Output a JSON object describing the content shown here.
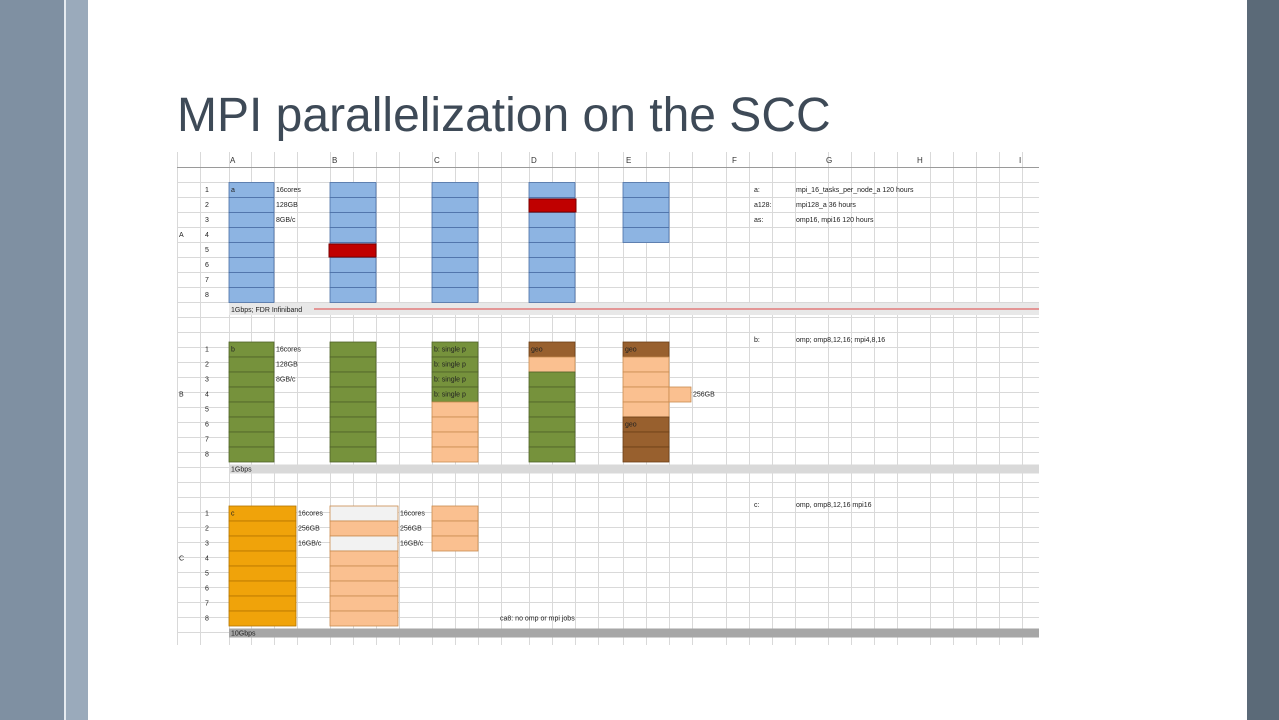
{
  "slide": {
    "title": "MPI parallelization on the SCC"
  },
  "spreadsheet": {
    "column_headers": [
      "A",
      "B",
      "C",
      "D",
      "E",
      "F",
      "G",
      "H",
      "I"
    ],
    "group_labels": [
      "A",
      "B",
      "C"
    ],
    "row_numbers": [
      "1",
      "2",
      "3",
      "4",
      "5",
      "6",
      "7",
      "8"
    ],
    "colors": {
      "blue": "#8db4e2",
      "red": "#c00000",
      "green": "#76923c",
      "brown": "#98602e",
      "peach": "#fac090",
      "orange": "#f0a30a",
      "light": "#f2f2f2",
      "grey_band": "#d9d9d9",
      "dark_band": "#a6a6a6",
      "network_red": "#e06666"
    },
    "group_a": {
      "node_label": "a",
      "specs": [
        "16cores",
        "128GB",
        "8GB/c"
      ],
      "network": "1Gbps; FDR Infiniband",
      "notes": [
        {
          "key": "a:",
          "value": "mpi_16_tasks_per_node_a   120 hours"
        },
        {
          "key": "a128:",
          "value": "mpi128_a   36 hours"
        },
        {
          "key": "as:",
          "value": "omp16, mpi16   120 hours"
        }
      ]
    },
    "group_b": {
      "node_label": "b",
      "specs": [
        "16cores",
        "128GB",
        "8GB/c"
      ],
      "network": "1Gbps",
      "single_p": "b: single p",
      "geo": "geo",
      "extra_mem": "256GB",
      "notes": [
        {
          "key": "b:",
          "value": "omp; omp8,12,16;  mpi4,8,16"
        }
      ]
    },
    "group_c": {
      "node_label": "c",
      "specs": [
        "16cores",
        "256GB",
        "16GB/c"
      ],
      "specs2": [
        "16cores",
        "256GB",
        "16GB/c"
      ],
      "network": "10Gbps",
      "c8_note": "ca8: no omp or mpi jobs",
      "notes": [
        {
          "key": "c:",
          "value": "omp, omp8,12,16  mpi16"
        }
      ]
    }
  }
}
